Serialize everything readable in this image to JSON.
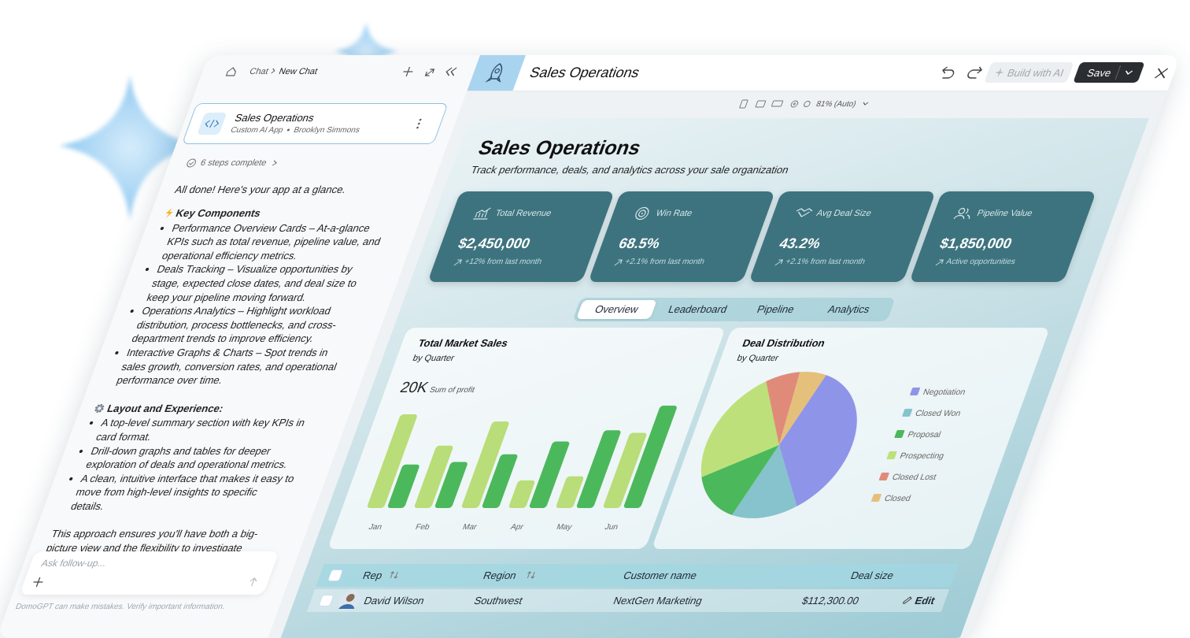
{
  "chat": {
    "breadcrumb": [
      "Chat",
      "New Chat"
    ],
    "app_card": {
      "title": "Sales Operations",
      "type": "Custom AI App",
      "author": "Brooklyn Simmons"
    },
    "steps": "6 steps complete",
    "intro": "All done! Here's your app at a glance.",
    "key_components": {
      "heading": "Key Components",
      "items": [
        "Performance Overview Cards – At-a-glance KPIs such as total revenue, pipeline value, and operational efficiency metrics.",
        "Deals Tracking  – Visualize opportunities by stage, expected close dates, and deal size to keep your pipeline moving forward.",
        "Operations Analytics  – Highlight workload distribution, process bottlenecks, and cross-department trends to improve efficiency.",
        "Interactive Graphs & Charts – Spot trends in sales growth, conversion rates, and operational performance over time."
      ]
    },
    "layout": {
      "heading": "Layout and Experience:",
      "items": [
        "A top-level summary section with key KPIs in card format.",
        "Drill-down graphs and tables for deeper exploration of deals and operational metrics.",
        "A clean, intuitive interface that makes it easy to move from high-level insights to specific details."
      ]
    },
    "closing": "This approach ensures you'll have both a big-picture view and the flexibility to investigate details—helping",
    "input_placeholder": "Ask follow-up...",
    "disclaimer": "DomoGPT can make mistakes. Verify important information."
  },
  "toolbar": {
    "title": "Sales Operations",
    "build": "Build with AI",
    "save": "Save",
    "zoom": "81% (Auto)"
  },
  "dashboard": {
    "title": "Sales Operations",
    "subtitle": "Track performance, deals, and analytics across your sale organization",
    "kpis": [
      {
        "label": "Total Revenue",
        "value": "$2,450,000",
        "note": "+12% from last month"
      },
      {
        "label": "Win Rate",
        "value": "68.5%",
        "note": "+2.1% from last month"
      },
      {
        "label": "Avg Deal Size",
        "value": "43.2%",
        "note": "+2.1% from last month"
      },
      {
        "label": "Pipeline Value",
        "value": "$1,850,000",
        "note": "Active opportunities"
      }
    ],
    "tabs": [
      "Overview",
      "Leaderboard",
      "Pipeline",
      "Analytics"
    ],
    "table": {
      "headers": [
        "Rep",
        "Region",
        "Customer name",
        "Deal size"
      ],
      "rows": [
        [
          "David Wilson",
          "Southwest",
          "NextGen Marketing",
          "$112,300.00"
        ]
      ],
      "action": "Edit"
    }
  },
  "chart_data": [
    {
      "type": "bar",
      "title": "Total Market Sales",
      "subtitle": "by Quarter",
      "headline": "20K",
      "headline_label": "Sum of profit",
      "categories": [
        "Jan",
        "Feb",
        "Mar",
        "Apr",
        "May",
        "Jun"
      ],
      "series": [
        {
          "color": "#b9dd78",
          "values": [
            18300,
            12200,
            16900,
            5400,
            6200,
            14700
          ]
        },
        {
          "color": "#4cb85c",
          "values": [
            8500,
            9000,
            10500,
            13000,
            15200,
            20000
          ]
        }
      ],
      "ylim": [
        0,
        20000
      ]
    },
    {
      "type": "pie",
      "title": "Deal Distribution",
      "subtitle": "by Quarter",
      "categories": [
        "Negotiation",
        "Closed Won",
        "Proposal",
        "Prospecting",
        "Closed Lost",
        "Closed"
      ],
      "values": [
        36,
        14,
        13,
        24,
        7,
        6
      ],
      "colors": [
        "#8e95e8",
        "#86c3cc",
        "#4cb85c",
        "#bde07a",
        "#e08b7a",
        "#e5c07a"
      ]
    }
  ]
}
